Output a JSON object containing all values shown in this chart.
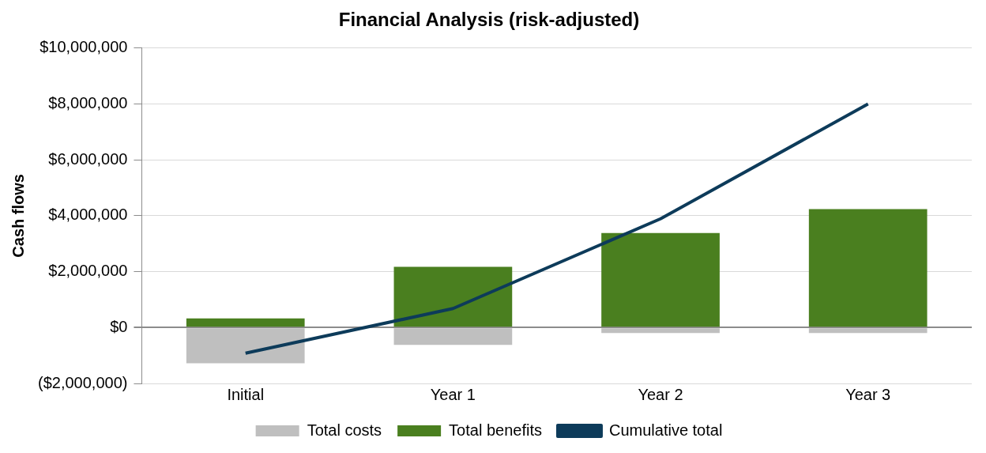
{
  "chart_data": {
    "type": "bar",
    "title": "Financial Analysis (risk-adjusted)",
    "ylabel": "Cash flows",
    "categories": [
      "Initial",
      "Year 1",
      "Year 2",
      "Year 3"
    ],
    "stacked": true,
    "series": [
      {
        "name": "Total costs",
        "type": "bar",
        "color": "#bfbfbf",
        "values": [
          -1280000,
          -620000,
          -200000,
          -200000
        ]
      },
      {
        "name": "Total benefits",
        "type": "bar",
        "color": "#4a7f1f",
        "values": [
          330000,
          2170000,
          3380000,
          4240000
        ]
      },
      {
        "name": "Cumulative total",
        "type": "line",
        "color": "#0d3b5a",
        "values": [
          -920000,
          680000,
          3890000,
          8000000
        ]
      }
    ],
    "ylim": [
      -2000000,
      10000000
    ],
    "yticks": [
      {
        "value": -2000000,
        "label": "($2,000,000)"
      },
      {
        "value": 0,
        "label": "$0"
      },
      {
        "value": 2000000,
        "label": "$2,000,000"
      },
      {
        "value": 4000000,
        "label": "$4,000,000"
      },
      {
        "value": 6000000,
        "label": "$6,000,000"
      },
      {
        "value": 8000000,
        "label": "$8,000,000"
      },
      {
        "value": 10000000,
        "label": "$10,000,000"
      }
    ],
    "grid": "y",
    "legend": "bottom",
    "marker": "none"
  }
}
